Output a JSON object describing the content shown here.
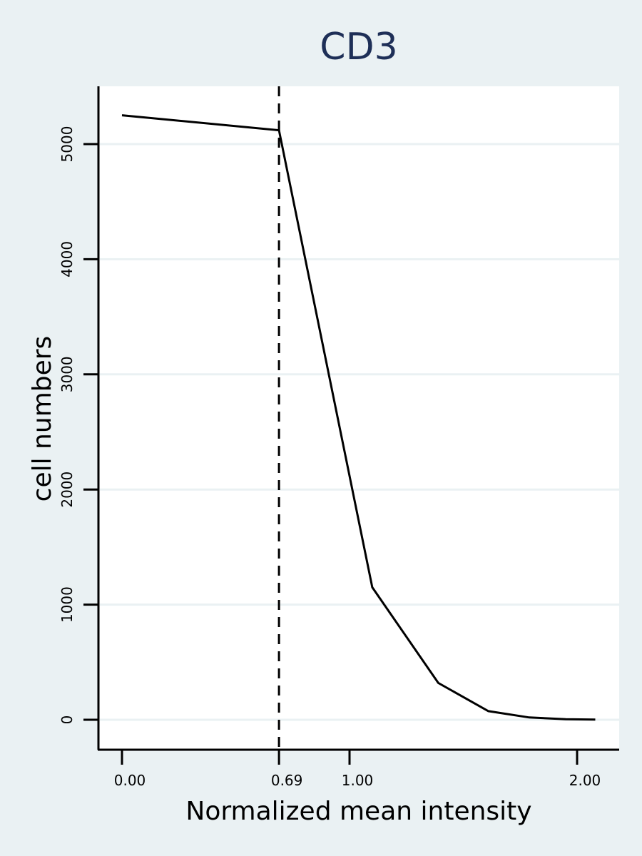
{
  "chart_data": {
    "type": "line",
    "title": "CD3",
    "xlabel": "Normalized mean intensity",
    "ylabel": "cell numbers",
    "xlim": [
      -0.1,
      2.18
    ],
    "ylim": [
      -250,
      5500
    ],
    "x_ticks": [
      {
        "value": 0.0,
        "label": "0.00"
      },
      {
        "value": 0.69,
        "label": "0.69"
      },
      {
        "value": 1.0,
        "label": "1.00"
      },
      {
        "value": 2.0,
        "label": "2.00"
      }
    ],
    "y_ticks": [
      {
        "value": 0,
        "label": "0"
      },
      {
        "value": 1000,
        "label": "1000"
      },
      {
        "value": 2000,
        "label": "2000"
      },
      {
        "value": 3000,
        "label": "3000"
      },
      {
        "value": 4000,
        "label": "4000"
      },
      {
        "value": 5000,
        "label": "5000"
      }
    ],
    "grid": "horizontal",
    "reference_line": {
      "x": 0.69,
      "style": "dashed"
    },
    "series": [
      {
        "x": [
          0.0,
          0.69,
          1.1,
          1.39,
          1.61,
          1.79,
          1.95,
          2.08
        ],
        "y": [
          5250,
          5120,
          1150,
          320,
          75,
          20,
          5,
          2
        ]
      }
    ],
    "colors": {
      "background": "#eaf1f3",
      "plot_background": "#ffffff",
      "title": "#1e2f57",
      "line": "#000000"
    }
  }
}
